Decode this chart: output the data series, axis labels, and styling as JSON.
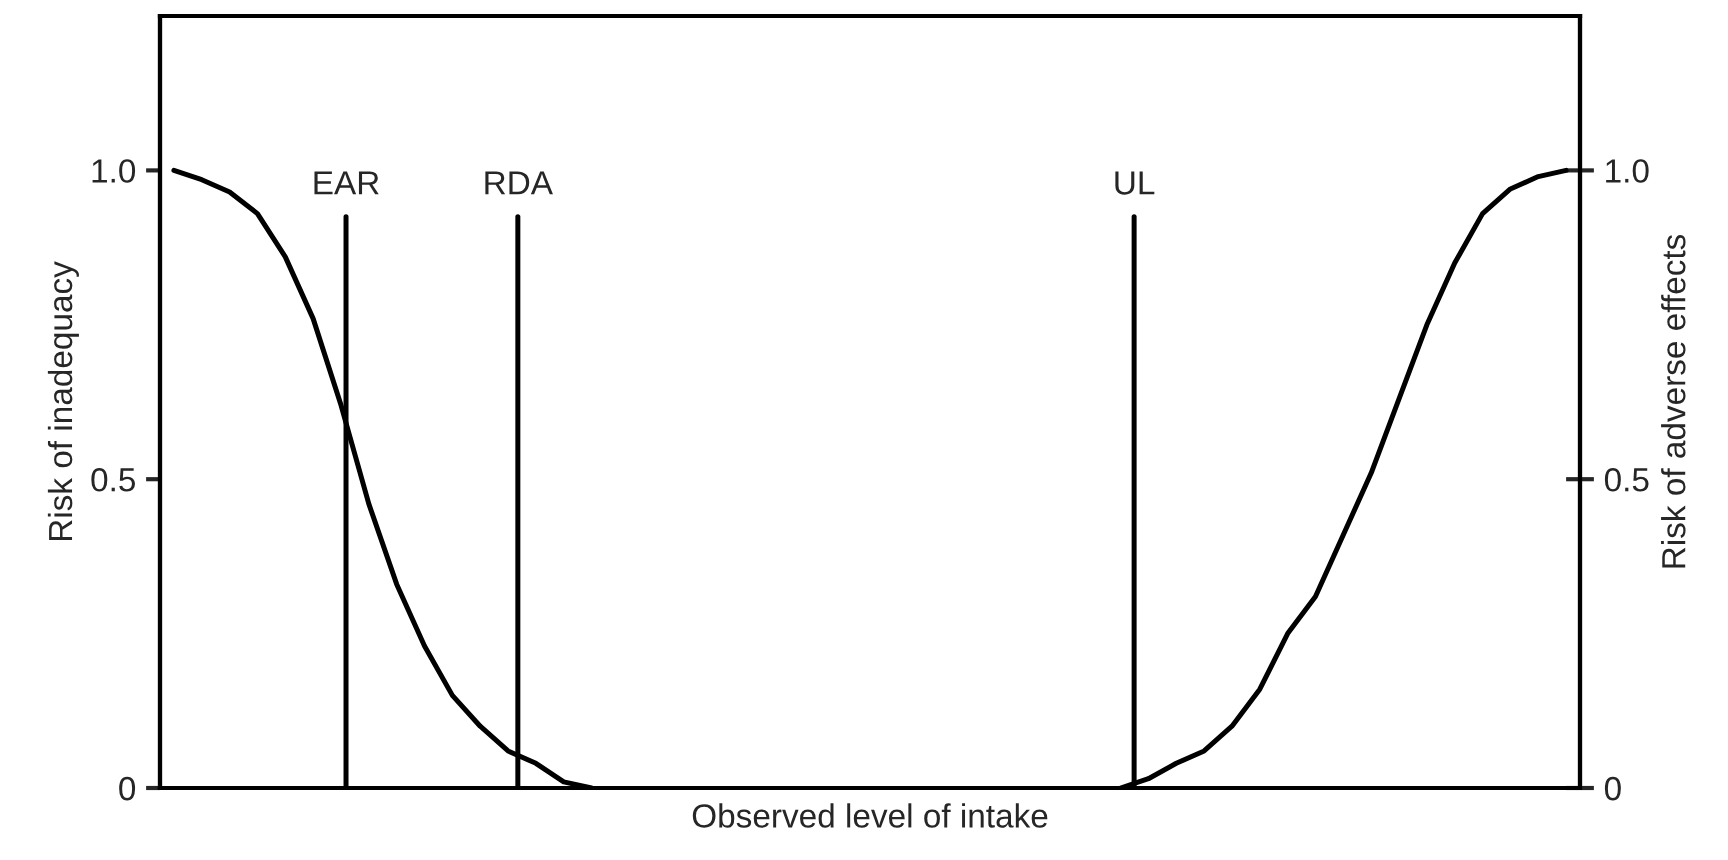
{
  "chart_data": {
    "type": "line",
    "xlabel": "Observed level of intake",
    "ylabel": "Risk of inadequacy",
    "y2label": "Risk of adverse effects",
    "categories": [
      null,
      null,
      null,
      null,
      null,
      null,
      null,
      null,
      null,
      null,
      null,
      null,
      null,
      null,
      null,
      null,
      null,
      null,
      null,
      null,
      null,
      null,
      null,
      null,
      null,
      null,
      null,
      null,
      null,
      null,
      null,
      null,
      null,
      null,
      null,
      null,
      null,
      null,
      null,
      null,
      null,
      null,
      null,
      null,
      null,
      null,
      null,
      null,
      null,
      null,
      null
    ],
    "ylim": [
      0,
      1.25
    ],
    "yticks": [
      0,
      {
        "value": 0.5,
        "label": "0.5"
      },
      {
        "value": 1,
        "label": "1.0"
      }
    ],
    "y2lim": [
      0,
      1.25
    ],
    "y2ticks": [
      0,
      {
        "value": 0.5,
        "label": "0.5"
      },
      {
        "value": 1,
        "label": "1.0"
      }
    ],
    "grid": false,
    "series": [
      {
        "color": "#000000",
        "values": [
          1.0,
          0.985,
          0.965,
          0.93,
          0.86,
          0.76,
          0.62,
          0.46,
          0.33,
          0.23,
          0.15,
          0.1,
          0.06,
          0.04,
          0.01,
          0,
          null,
          null,
          null,
          null,
          null,
          null,
          null,
          null,
          null,
          null,
          null,
          null,
          null,
          null,
          null,
          null,
          null,
          null,
          null,
          null,
          null,
          null,
          null,
          null,
          null,
          null,
          null,
          null,
          null,
          null,
          null,
          null,
          null,
          null,
          null
        ]
      },
      {
        "color": "#000000",
        "axis": "y2",
        "values": [
          null,
          null,
          null,
          null,
          null,
          null,
          null,
          null,
          null,
          null,
          null,
          null,
          null,
          null,
          null,
          null,
          null,
          null,
          null,
          null,
          null,
          null,
          null,
          null,
          null,
          null,
          null,
          null,
          null,
          null,
          null,
          null,
          null,
          null,
          0,
          0.015,
          0.04,
          0.06,
          0.1,
          0.16,
          0.25,
          0.31,
          0.41,
          0.51,
          0.63,
          0.75,
          0.85,
          0.93,
          0.97,
          0.99,
          1.0
        ]
      }
    ],
    "annotations": [
      "EAR",
      "RDA",
      "UL"
    ]
  }
}
